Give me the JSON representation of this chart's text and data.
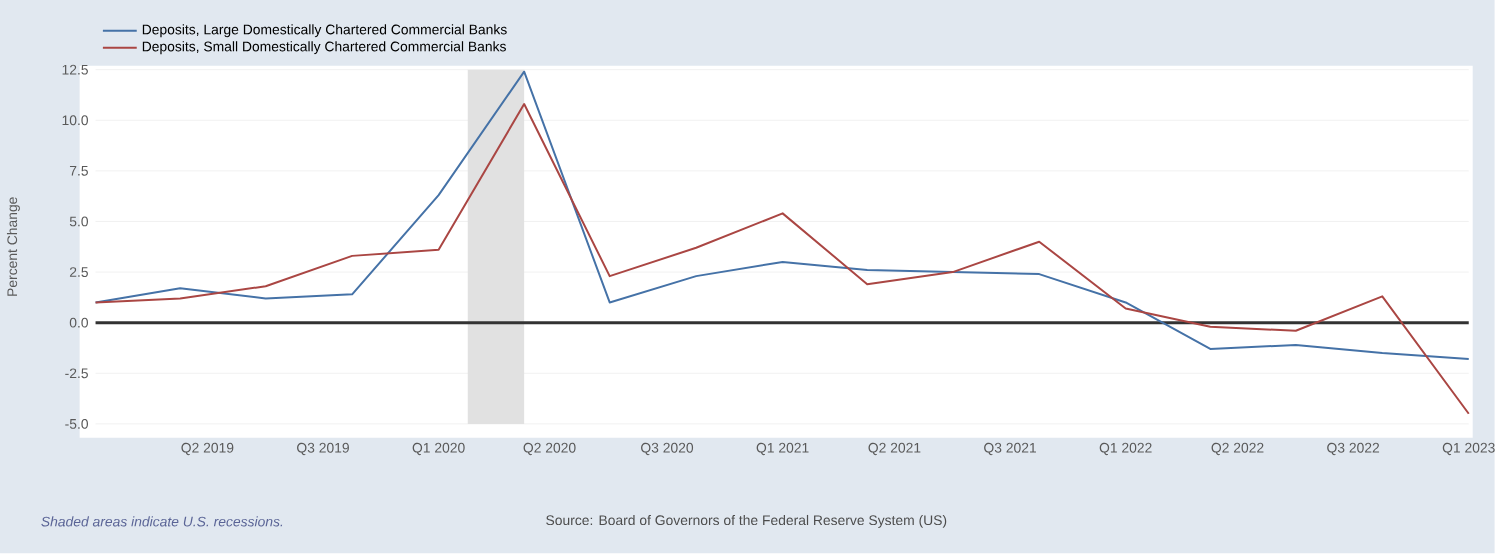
{
  "chart_data": {
    "type": "line",
    "ylabel": "Percent Change",
    "x": [
      "2019-01-01",
      "2019-04-01",
      "2019-07-01",
      "2019-10-01",
      "2020-01-01",
      "2020-04-01",
      "2020-07-01",
      "2020-10-01",
      "2021-01-01",
      "2021-04-01",
      "2021-07-01",
      "2021-10-01",
      "2022-01-01",
      "2022-04-01",
      "2022-07-01",
      "2022-10-01",
      "2023-01-01"
    ],
    "series": [
      {
        "name": "Deposits, Large Domestically Chartered Commercial Banks",
        "color": "#4572a7",
        "values": [
          1.0,
          1.7,
          1.2,
          1.4,
          6.3,
          12.4,
          1.0,
          2.3,
          3.0,
          2.6,
          2.5,
          2.4,
          1.0,
          -1.3,
          -1.1,
          -1.5,
          -1.8
        ]
      },
      {
        "name": "Deposits, Small Domestically Chartered Commercial Banks",
        "color": "#aa4643",
        "values": [
          1.0,
          1.2,
          1.8,
          3.3,
          3.6,
          10.8,
          2.3,
          3.7,
          5.4,
          1.9,
          2.5,
          4.0,
          0.7,
          -0.2,
          -0.4,
          1.3,
          -4.5
        ]
      }
    ],
    "xlim": [
      "2019-01-01",
      "2023-01-01"
    ],
    "xticks": [
      {
        "value": "2019-04-30",
        "label": "Q2 2019"
      },
      {
        "value": "2019-08-31",
        "label": "Q3 2019"
      },
      {
        "value": "2020-01-01",
        "label": "Q1 2020"
      },
      {
        "value": "2020-04-28",
        "label": "Q2 2020"
      },
      {
        "value": "2020-08-31",
        "label": "Q3 2020"
      },
      {
        "value": "2021-01-01",
        "label": "Q1 2021"
      },
      {
        "value": "2021-04-30",
        "label": "Q2 2021"
      },
      {
        "value": "2021-08-31",
        "label": "Q3 2021"
      },
      {
        "value": "2022-01-01",
        "label": "Q1 2022"
      },
      {
        "value": "2022-04-30",
        "label": "Q2 2022"
      },
      {
        "value": "2022-08-31",
        "label": "Q3 2022"
      },
      {
        "value": "2023-01-01",
        "label": "Q1 2023"
      }
    ],
    "ylim": [
      -5,
      12.5
    ],
    "yticks": [
      {
        "value": -5,
        "label": "-5.0"
      },
      {
        "value": -2.5,
        "label": "-2.5"
      },
      {
        "value": 0,
        "label": "0.0"
      },
      {
        "value": 2.5,
        "label": "2.5"
      },
      {
        "value": 5,
        "label": "5.0"
      },
      {
        "value": 7.5,
        "label": "7.5"
      },
      {
        "value": 10,
        "label": "10.0"
      },
      {
        "value": 12.5,
        "label": "12.5"
      }
    ],
    "ref_lines": [
      {
        "axis": "y",
        "value": 0,
        "color": "#333333"
      }
    ],
    "bands": [
      {
        "axis": "x",
        "from": "2020-02-01",
        "to": "2020-04-01",
        "color": "#e1e1e1"
      }
    ],
    "grid": "y",
    "legend": "top left",
    "marker": "none",
    "line_style": "solid",
    "annotations": [
      "Shaded areas indicate U.S. recessions.",
      "Source: Board of Governors of the Federal Reserve System (US)"
    ]
  }
}
